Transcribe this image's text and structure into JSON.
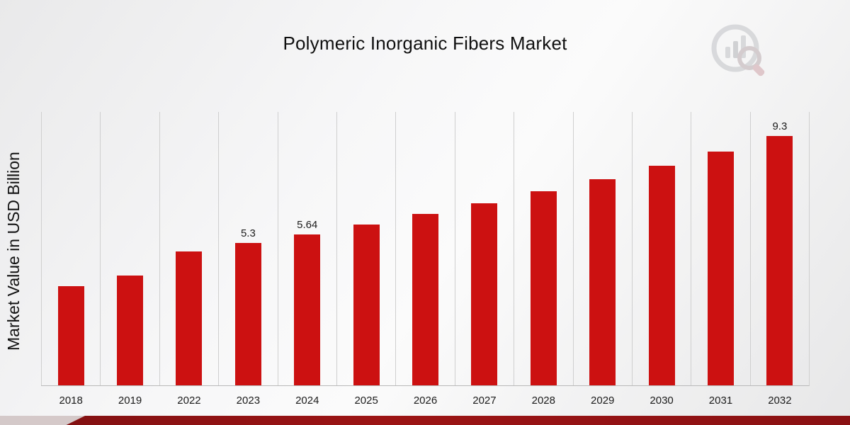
{
  "chart_data": {
    "type": "bar",
    "title": "Polymeric Inorganic Fibers Market",
    "xlabel": "",
    "ylabel": "Market Value in USD Billion",
    "categories": [
      "2018",
      "2019",
      "2022",
      "2023",
      "2024",
      "2025",
      "2026",
      "2027",
      "2028",
      "2029",
      "2030",
      "2031",
      "2032"
    ],
    "values": [
      3.7,
      4.1,
      5.0,
      5.3,
      5.64,
      6.0,
      6.39,
      6.8,
      7.23,
      7.7,
      8.19,
      8.72,
      9.3
    ],
    "bar_labels": [
      "",
      "",
      "",
      "5.3",
      "5.64",
      "",
      "",
      "",
      "",
      "",
      "",
      "",
      "9.3"
    ],
    "ylim": [
      0,
      10.2
    ],
    "grid": "vertical-only",
    "legend": "none",
    "bar_color": "#cc1111"
  },
  "branding": {
    "logo_name": "market-research-logo",
    "footer_strip_color": "#8a1113"
  }
}
